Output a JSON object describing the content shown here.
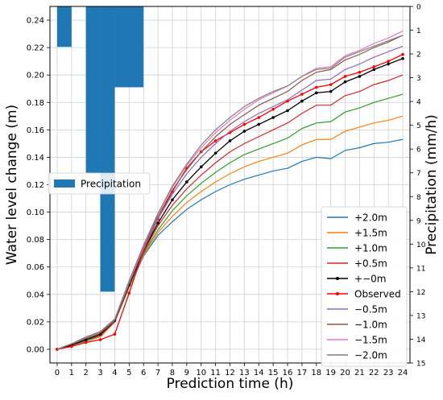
{
  "chart_data": {
    "type": "line",
    "xlabel": "Prediction time (h)",
    "ylabel": "Water level change (m)",
    "y2label": "Precipitation (mm/h)",
    "x_ticks": [
      0,
      1,
      2,
      3,
      4,
      5,
      6,
      7,
      8,
      9,
      10,
      11,
      12,
      13,
      14,
      15,
      16,
      17,
      18,
      19,
      20,
      21,
      22,
      23,
      24
    ],
    "ylim": [
      -0.01,
      0.25
    ],
    "y_ticks": [
      "0.00",
      "0.02",
      "0.04",
      "0.06",
      "0.08",
      "0.10",
      "0.12",
      "0.14",
      "0.16",
      "0.18",
      "0.20",
      "0.22",
      "0.24"
    ],
    "y2lim": [
      0,
      15
    ],
    "y2_ticks": [
      "0",
      "1",
      "2",
      "3",
      "4",
      "5",
      "6",
      "7",
      "8",
      "9",
      "10",
      "11",
      "12",
      "13",
      "14",
      "15"
    ],
    "y2_inverted": true,
    "grid": true,
    "precipitation": {
      "name": "Precipitation",
      "color": "#1f77b4",
      "legend_position": "center-left",
      "bars": [
        {
          "x0": 0,
          "x1": 1,
          "value": 1.7
        },
        {
          "x0": 1,
          "x1": 2,
          "value": 0
        },
        {
          "x0": 2,
          "x1": 3,
          "value": 7.0
        },
        {
          "x0": 3,
          "x1": 4,
          "value": 12.0
        },
        {
          "x0": 4,
          "x1": 6,
          "value": 3.4
        }
      ]
    },
    "legend_position": "lower-right",
    "series": [
      {
        "name": "+2.0m",
        "color": "#1f77b4",
        "marker": false,
        "values": [
          0,
          0.003,
          0.006,
          0.009,
          0.02,
          0.045,
          0.068,
          0.083,
          0.093,
          0.102,
          0.109,
          0.115,
          0.12,
          0.124,
          0.127,
          0.13,
          0.132,
          0.137,
          0.14,
          0.139,
          0.145,
          0.147,
          0.15,
          0.151,
          0.153
        ]
      },
      {
        "name": "+1.5m",
        "color": "#ff7f0e",
        "marker": false,
        "values": [
          0,
          0.003,
          0.006,
          0.009,
          0.02,
          0.045,
          0.069,
          0.085,
          0.097,
          0.107,
          0.115,
          0.122,
          0.128,
          0.133,
          0.137,
          0.14,
          0.143,
          0.149,
          0.153,
          0.153,
          0.159,
          0.162,
          0.165,
          0.167,
          0.17
        ]
      },
      {
        "name": "+1.0m",
        "color": "#2ca02c",
        "marker": false,
        "values": [
          0,
          0.003,
          0.006,
          0.01,
          0.02,
          0.046,
          0.07,
          0.087,
          0.101,
          0.112,
          0.121,
          0.129,
          0.136,
          0.142,
          0.146,
          0.15,
          0.154,
          0.161,
          0.165,
          0.166,
          0.173,
          0.176,
          0.18,
          0.183,
          0.186
        ]
      },
      {
        "name": "+0.5m",
        "color": "#d62728",
        "marker": false,
        "values": [
          0,
          0.003,
          0.007,
          0.01,
          0.02,
          0.047,
          0.071,
          0.09,
          0.105,
          0.117,
          0.127,
          0.136,
          0.144,
          0.15,
          0.155,
          0.16,
          0.165,
          0.172,
          0.178,
          0.178,
          0.185,
          0.188,
          0.193,
          0.196,
          0.2
        ]
      },
      {
        "name": "+−0m",
        "color": "#000000",
        "marker": true,
        "values": [
          0,
          0.003,
          0.007,
          0.011,
          0.021,
          0.047,
          0.072,
          0.092,
          0.109,
          0.122,
          0.133,
          0.143,
          0.152,
          0.159,
          0.164,
          0.169,
          0.174,
          0.181,
          0.187,
          0.188,
          0.195,
          0.199,
          0.204,
          0.208,
          0.212
        ]
      },
      {
        "name": "Observed",
        "color": "#ff0000",
        "marker": true,
        "values": [
          0,
          0.002,
          0.005,
          0.007,
          0.011,
          0.041,
          0.072,
          0.095,
          0.115,
          0.132,
          0.144,
          0.152,
          0.158,
          0.164,
          0.169,
          0.175,
          0.181,
          0.186,
          0.191,
          0.193,
          0.199,
          0.202,
          0.206,
          0.21,
          0.215
        ]
      },
      {
        "name": "−0.5m",
        "color": "#9467bd",
        "marker": false,
        "values": [
          0,
          0.004,
          0.008,
          0.012,
          0.021,
          0.048,
          0.073,
          0.095,
          0.113,
          0.128,
          0.14,
          0.15,
          0.159,
          0.166,
          0.172,
          0.177,
          0.182,
          0.189,
          0.196,
          0.197,
          0.204,
          0.208,
          0.213,
          0.217,
          0.221
        ]
      },
      {
        "name": "−1.0m",
        "color": "#8c564b",
        "marker": false,
        "values": [
          0,
          0.004,
          0.008,
          0.012,
          0.021,
          0.049,
          0.074,
          0.097,
          0.116,
          0.131,
          0.144,
          0.155,
          0.164,
          0.171,
          0.178,
          0.183,
          0.188,
          0.196,
          0.202,
          0.204,
          0.211,
          0.215,
          0.22,
          0.224,
          0.229
        ]
      },
      {
        "name": "−1.5m",
        "color": "#e377c2",
        "marker": false,
        "values": [
          0,
          0.004,
          0.009,
          0.013,
          0.022,
          0.049,
          0.075,
          0.099,
          0.118,
          0.134,
          0.147,
          0.158,
          0.167,
          0.175,
          0.182,
          0.187,
          0.192,
          0.199,
          0.205,
          0.206,
          0.214,
          0.218,
          0.223,
          0.227,
          0.232
        ]
      },
      {
        "name": "−2.0m",
        "color": "#7f7f7f",
        "marker": false,
        "values": [
          0,
          0.004,
          0.009,
          0.013,
          0.022,
          0.05,
          0.076,
          0.099,
          0.119,
          0.135,
          0.149,
          0.16,
          0.169,
          0.177,
          0.183,
          0.188,
          0.192,
          0.199,
          0.204,
          0.205,
          0.213,
          0.217,
          0.221,
          0.225,
          0.229
        ]
      }
    ]
  }
}
